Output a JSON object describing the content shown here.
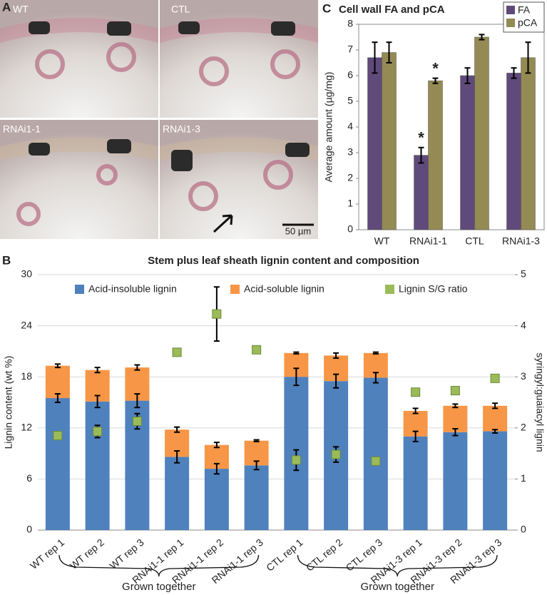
{
  "images": {
    "panel_label": "A",
    "labels": [
      "WT",
      "CTL",
      "RNAi1-1",
      "RNAi1-3"
    ],
    "scale_bar": "50 µm"
  },
  "chart_data": [
    {
      "type": "bar",
      "panel_label": "C",
      "title": "Cell wall FA and pCA",
      "ylabel": "Average amount (µg/mg)",
      "categories": [
        "WT",
        "RNAi1-1",
        "CTL",
        "RNAi1-3"
      ],
      "series": [
        {
          "name": "FA",
          "color": "#604a7b",
          "values": [
            6.7,
            2.9,
            6.0,
            6.1
          ],
          "errors": [
            0.6,
            0.3,
            0.3,
            0.2
          ],
          "significance": [
            null,
            "*",
            null,
            null
          ]
        },
        {
          "name": "pCA",
          "color": "#948a54",
          "values": [
            6.9,
            5.8,
            7.5,
            6.7
          ],
          "errors": [
            0.4,
            0.1,
            0.1,
            0.6
          ],
          "significance": [
            null,
            "*",
            null,
            null
          ]
        }
      ],
      "ylim": [
        0,
        8
      ],
      "yticks": [
        0,
        1,
        2,
        3,
        4,
        5,
        6,
        7,
        8
      ],
      "grid": false,
      "legend": "top-right"
    },
    {
      "type": "stacked_bar",
      "panel_label": "B",
      "title": "Stem plus leaf sheath lignin content and composition",
      "ylabel": "Lignin content (wt %)",
      "y2label": "syringyl:guaiacyl lignin",
      "categories": [
        "WT rep 1",
        "WT rep 2",
        "WT rep 3",
        "RNAi1-1 rep 1",
        "RNAi1-1 rep 2",
        "RNAi1-1 rep 3",
        "CTL rep 1",
        "CTL rep 2",
        "CTL rep 3",
        "RNAi1-3 rep 1",
        "RNAi1-3 rep 2",
        "RNAi1-3 rep 3"
      ],
      "series": [
        {
          "name": "Acid-insoluble lignin",
          "color": "#4f81bd",
          "values": [
            15.5,
            15.1,
            15.2,
            8.6,
            7.2,
            7.6,
            18.0,
            17.5,
            17.9,
            11.0,
            11.5,
            11.6
          ],
          "errors": [
            0.5,
            0.7,
            0.8,
            0.7,
            0.6,
            0.5,
            1.0,
            0.8,
            0.6,
            0.6,
            0.4,
            0.2
          ]
        },
        {
          "name": "Acid-soluble lignin",
          "color": "#f79646",
          "values": [
            3.8,
            3.7,
            3.9,
            3.2,
            2.8,
            2.9,
            2.8,
            3.0,
            2.9,
            3.0,
            3.1,
            3.0
          ],
          "errors": [
            0.2,
            0.3,
            0.3,
            0.3,
            0.3,
            0.1,
            0.1,
            0.3,
            0.1,
            0.3,
            0.2,
            0.3
          ]
        },
        {
          "name": "Lignin S/G ratio",
          "color": "#9bbb59",
          "type": "scatter",
          "axis": "y2",
          "values": [
            1.85,
            1.93,
            2.13,
            3.48,
            4.23,
            3.53,
            1.37,
            1.48,
            1.35,
            2.7,
            2.73,
            2.97
          ],
          "errors": [
            0.05,
            0.12,
            0.15,
            0,
            0.53,
            0,
            0.2,
            0.15,
            0,
            0.07,
            0,
            0
          ]
        }
      ],
      "ylim": [
        0,
        30
      ],
      "yticks": [
        0,
        6,
        12,
        18,
        24,
        30
      ],
      "y2lim": [
        0,
        5
      ],
      "y2ticks": [
        0,
        1,
        2,
        3,
        4,
        5
      ],
      "grid": true,
      "legend": "top",
      "group_labels": [
        "Grown together",
        "Grown together"
      ]
    }
  ]
}
